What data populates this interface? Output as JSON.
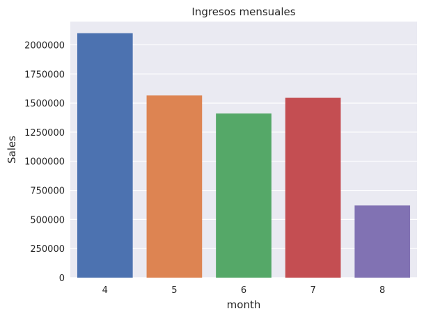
{
  "chart_data": {
    "type": "bar",
    "title": "Ingresos mensuales",
    "xlabel": "month",
    "ylabel": "Sales",
    "categories": [
      "4",
      "5",
      "6",
      "7",
      "8"
    ],
    "values": [
      2100000,
      1565000,
      1410000,
      1545000,
      620000
    ],
    "bar_colors": [
      "#4c72b0",
      "#dd8452",
      "#55a868",
      "#c44e52",
      "#8172b3"
    ],
    "ylim": [
      0,
      2200000
    ],
    "yticks": [
      0,
      250000,
      500000,
      750000,
      1000000,
      1250000,
      1500000,
      1750000,
      2000000
    ],
    "ytick_labels": [
      "0",
      "250000",
      "500000",
      "750000",
      "1000000",
      "1250000",
      "1500000",
      "1750000",
      "2000000"
    ],
    "grid": true,
    "plot_background": "#eaeaf2",
    "grid_color": "#ffffff"
  }
}
